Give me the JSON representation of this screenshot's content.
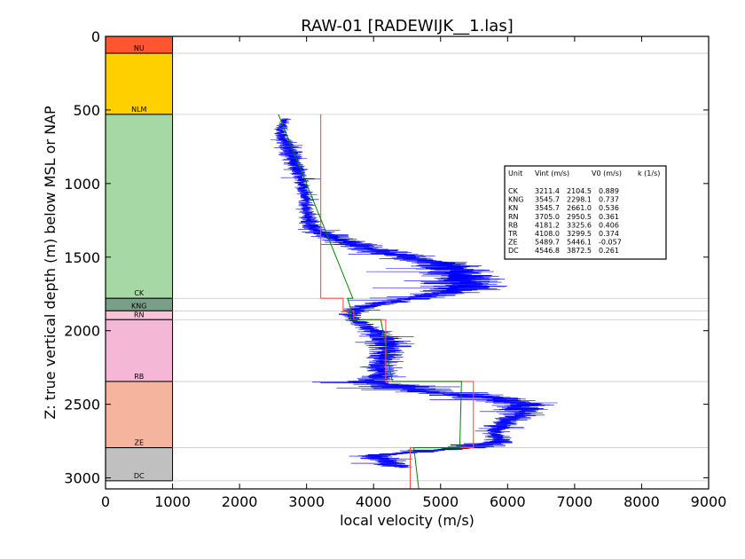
{
  "chart_data": {
    "type": "line",
    "title": "RAW-01 [RADEWIJK__1.las]",
    "xlabel": "local velocity (m/s)",
    "ylabel": "Z: true vertical depth (m) below MSL or NAP",
    "xlim": [
      0,
      9000
    ],
    "ylim": [
      3075,
      0
    ],
    "y_inverted": true,
    "xticks": [
      0,
      1000,
      2000,
      3000,
      4000,
      5000,
      6000,
      7000,
      8000,
      9000
    ],
    "yticks": [
      0,
      500,
      1000,
      1500,
      2000,
      2500,
      3000
    ],
    "grid": false,
    "stratigraphy": [
      {
        "unit": "NU",
        "top": 0,
        "base": 115,
        "color": "#ff5530"
      },
      {
        "unit": "NLM",
        "top": 115,
        "base": 530,
        "color": "#ffd000"
      },
      {
        "unit": "CK",
        "top": 530,
        "base": 1780,
        "color": "#a6d8a6"
      },
      {
        "unit": "KNG",
        "top": 1780,
        "base": 1865,
        "color": "#7a9e88"
      },
      {
        "unit": "RN",
        "top": 1865,
        "base": 1925,
        "color": "#f8c3d6"
      },
      {
        "unit": "RB",
        "top": 1925,
        "base": 2345,
        "color": "#f4b8d6"
      },
      {
        "unit": "ZE",
        "top": 2345,
        "base": 2795,
        "color": "#f5b49e"
      },
      {
        "unit": "DC",
        "top": 2795,
        "base": 3020,
        "color": "#c0c0c0"
      }
    ],
    "boundaries": [
      115,
      530,
      1780,
      1865,
      1925,
      2345,
      2795,
      3020
    ],
    "legend": {
      "header": [
        "Unit",
        "Vint (m/s)",
        "V0 (m/s)",
        "k (1/s)"
      ],
      "rows": [
        [
          "CK",
          "3211.4",
          "2104.5",
          "0.889"
        ],
        [
          "KNG",
          "3545.7",
          "2298.1",
          "0.737"
        ],
        [
          "KN",
          "3545.7",
          "2661.0",
          "0.536"
        ],
        [
          "RN",
          "3705.0",
          "2950.5",
          "0.361"
        ],
        [
          "RB",
          "4181.2",
          "3325.6",
          "0.406"
        ],
        [
          "TR",
          "4108.0",
          "3299.5",
          "0.374"
        ],
        [
          "ZE",
          "5489.7",
          "5446.1",
          "-0.057"
        ],
        [
          "DC",
          "4546.8",
          "3872.5",
          "0.261"
        ]
      ],
      "position": "right"
    },
    "series": [
      {
        "role": "interval-velocity",
        "color": "#ff4d4d",
        "segments": [
          {
            "top": 530,
            "base": 1780,
            "v": 3211.4
          },
          {
            "top": 1780,
            "base": 1865,
            "v": 3545.7
          },
          {
            "top": 1865,
            "base": 1925,
            "v": 3705.0
          },
          {
            "top": 1925,
            "base": 2345,
            "v": 4181.2
          },
          {
            "top": 2345,
            "base": 2795,
            "v": 5489.7
          },
          {
            "top": 2795,
            "base": 3075,
            "v": 4546.8
          }
        ]
      },
      {
        "role": "linear-velocity-model",
        "color": "#008000",
        "segments": [
          {
            "z": [
              530,
              1780
            ],
            "v": [
              2580,
              3690
            ]
          },
          {
            "z": [
              1780,
              1865
            ],
            "v": [
              3610,
              3672
            ]
          },
          {
            "z": [
              1865,
              1925
            ],
            "v": [
              3635,
              3657
            ]
          },
          {
            "z": [
              1925,
              2345
            ],
            "v": [
              4108,
              4279
            ]
          },
          {
            "z": [
              2345,
              2795
            ],
            "v": [
              5312,
              5286
            ]
          },
          {
            "z": [
              2795,
              3075
            ],
            "v": [
              4601,
              4674
            ]
          }
        ]
      },
      {
        "role": "log-velocity",
        "color": "#0000ff",
        "profile": [
          [
            560,
            2680
          ],
          [
            600,
            2650
          ],
          [
            650,
            2600
          ],
          [
            700,
            2660
          ],
          [
            750,
            2740
          ],
          [
            800,
            2780
          ],
          [
            850,
            2820
          ],
          [
            900,
            2860
          ],
          [
            950,
            2900
          ],
          [
            1000,
            2940
          ],
          [
            1050,
            2950
          ],
          [
            1100,
            2980
          ],
          [
            1150,
            2990
          ],
          [
            1200,
            3000
          ],
          [
            1250,
            3040
          ],
          [
            1300,
            3080
          ],
          [
            1350,
            3300
          ],
          [
            1400,
            3600
          ],
          [
            1450,
            4000
          ],
          [
            1500,
            4500
          ],
          [
            1550,
            5000
          ],
          [
            1600,
            5300
          ],
          [
            1650,
            5400
          ],
          [
            1700,
            5350
          ],
          [
            1750,
            5000
          ],
          [
            1800,
            4300
          ],
          [
            1850,
            3750
          ],
          [
            1900,
            3650
          ],
          [
            1950,
            3800
          ],
          [
            2000,
            4000
          ],
          [
            2050,
            4150
          ],
          [
            2100,
            4250
          ],
          [
            2150,
            4200
          ],
          [
            2200,
            4150
          ],
          [
            2250,
            4100
          ],
          [
            2300,
            4100
          ],
          [
            2350,
            4000
          ],
          [
            2400,
            4600
          ],
          [
            2450,
            5600
          ],
          [
            2500,
            6300
          ],
          [
            2550,
            6200
          ],
          [
            2600,
            6100
          ],
          [
            2650,
            5850
          ],
          [
            2700,
            5800
          ],
          [
            2750,
            5900
          ],
          [
            2800,
            5300
          ],
          [
            2850,
            4000
          ],
          [
            2900,
            4200
          ],
          [
            2930,
            4450
          ]
        ],
        "noise": [
          [
            560,
            100
          ],
          [
            650,
            150
          ],
          [
            800,
            250
          ],
          [
            1000,
            150
          ],
          [
            1200,
            150
          ],
          [
            1300,
            250
          ],
          [
            1400,
            400
          ],
          [
            1500,
            600
          ],
          [
            1600,
            800
          ],
          [
            1700,
            900
          ],
          [
            1800,
            400
          ],
          [
            1900,
            200
          ],
          [
            2000,
            300
          ],
          [
            2100,
            450
          ],
          [
            2200,
            300
          ],
          [
            2300,
            300
          ],
          [
            2350,
            600
          ],
          [
            2400,
            900
          ],
          [
            2500,
            700
          ],
          [
            2600,
            350
          ],
          [
            2700,
            200
          ],
          [
            2800,
            600
          ],
          [
            2900,
            400
          ],
          [
            2930,
            200
          ]
        ]
      }
    ]
  }
}
